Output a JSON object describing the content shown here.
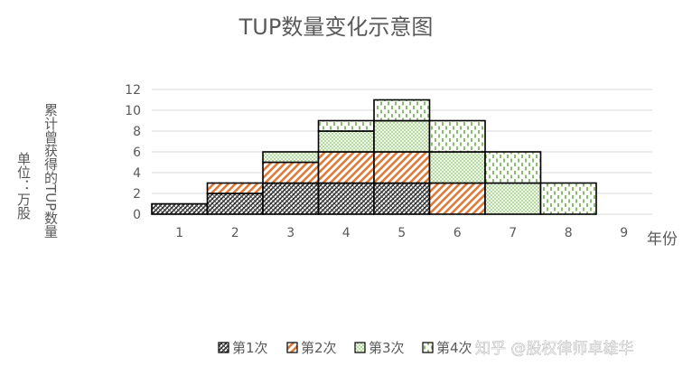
{
  "chart_data": {
    "type": "bar",
    "title": "TUP数量变化示意图",
    "xlabel": "年份",
    "ylabel_lines": [
      "单位：万股",
      "累计曾获得的TUP数量"
    ],
    "categories": [
      "1",
      "2",
      "3",
      "4",
      "5",
      "6",
      "7",
      "8",
      "9"
    ],
    "ylim": [
      0,
      12
    ],
    "yticks": [
      "0",
      "2",
      "4",
      "6",
      "8",
      "10",
      "12"
    ],
    "grid": true,
    "stacked": true,
    "legend_position": "bottom",
    "series": [
      {
        "name": "第1次",
        "values": [
          1,
          2,
          3,
          3,
          3,
          0,
          0,
          0,
          0
        ],
        "pattern": "crosshatch-dark",
        "color": "#404040"
      },
      {
        "name": "第2次",
        "values": [
          0,
          1,
          2,
          3,
          3,
          3,
          0,
          0,
          0
        ],
        "pattern": "diagonal-orange",
        "color": "#e07b39"
      },
      {
        "name": "第3次",
        "values": [
          0,
          0,
          1,
          2,
          3,
          3,
          3,
          0,
          0
        ],
        "pattern": "mesh-green",
        "color": "#70ad47"
      },
      {
        "name": "第4次",
        "values": [
          0,
          0,
          0,
          1,
          2,
          3,
          3,
          3,
          0
        ],
        "pattern": "dashes-green",
        "color": "#70ad47"
      }
    ]
  },
  "watermark": "知乎 @股权律师卓雄华"
}
